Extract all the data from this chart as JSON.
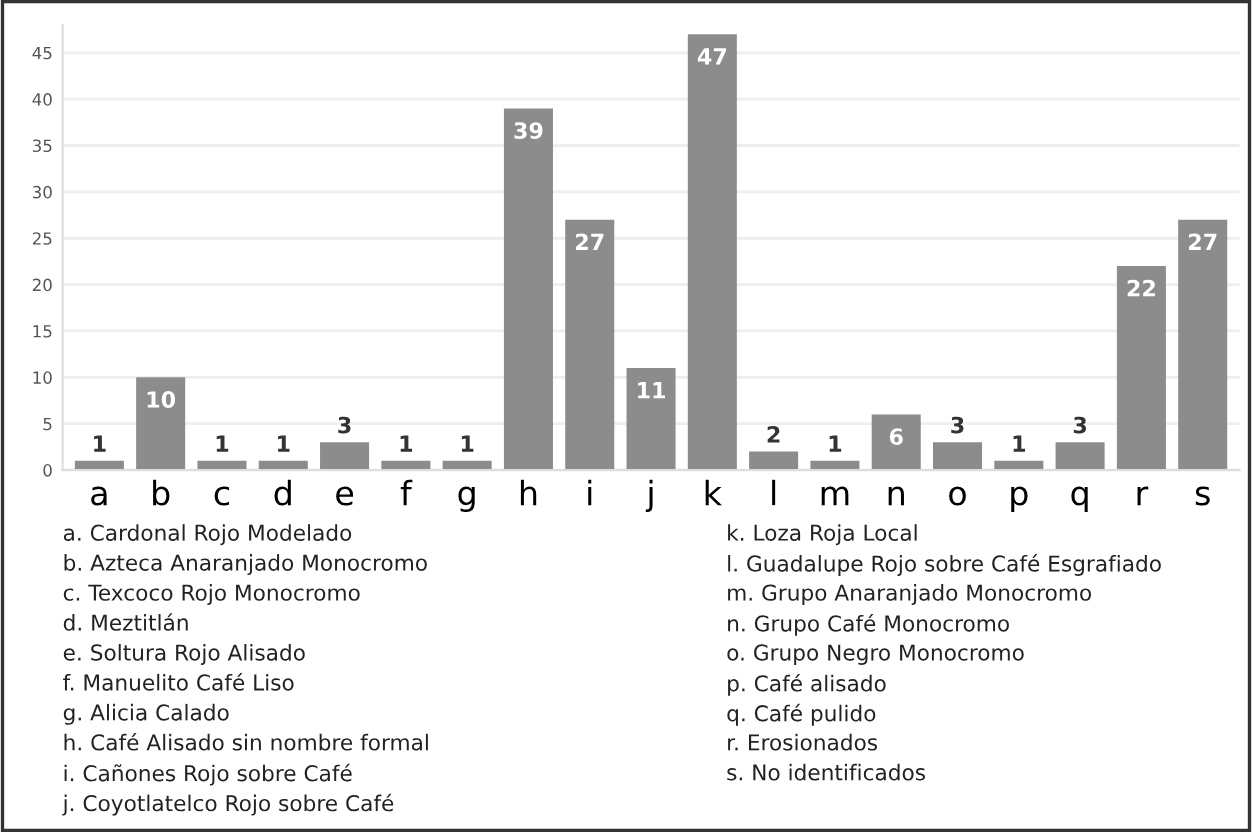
{
  "chart_data": {
    "type": "bar",
    "categories": [
      "a",
      "b",
      "c",
      "d",
      "e",
      "f",
      "g",
      "h",
      "i",
      "j",
      "k",
      "l",
      "m",
      "n",
      "o",
      "p",
      "q",
      "r",
      "s"
    ],
    "values": [
      1,
      10,
      1,
      1,
      3,
      1,
      1,
      39,
      27,
      11,
      47,
      2,
      1,
      6,
      3,
      1,
      3,
      22,
      27
    ],
    "color": "#8c8c8c",
    "ylim": [
      0,
      48
    ],
    "yticks": [
      0,
      5,
      10,
      15,
      20,
      25,
      30,
      35,
      40,
      45
    ],
    "grid": "y",
    "data_labels": true,
    "annotations": [
      "a. Cardonal Rojo Modelado",
      "b. Azteca Anaranjado Monocromo",
      "c. Texcoco Rojo Monocromo",
      "d. Meztitlán",
      "e. Soltura Rojo Alisado",
      "f. Manuelito Café Liso",
      "g. Alicia Calado",
      "h. Café Alisado sin nombre formal",
      "i. Cañones Rojo sobre Café",
      "j. Coyotlatelco Rojo sobre Café",
      "k. Loza Roja Local",
      "l. Guadalupe Rojo sobre Café Esgrafiado",
      "m. Grupo Anaranjado Monocromo",
      "n. Grupo Café Monocromo",
      "o. Grupo Negro Monocromo",
      "p. Café alisado",
      "q. Café pulido",
      "r. Erosionados",
      "s. No identificados"
    ]
  }
}
